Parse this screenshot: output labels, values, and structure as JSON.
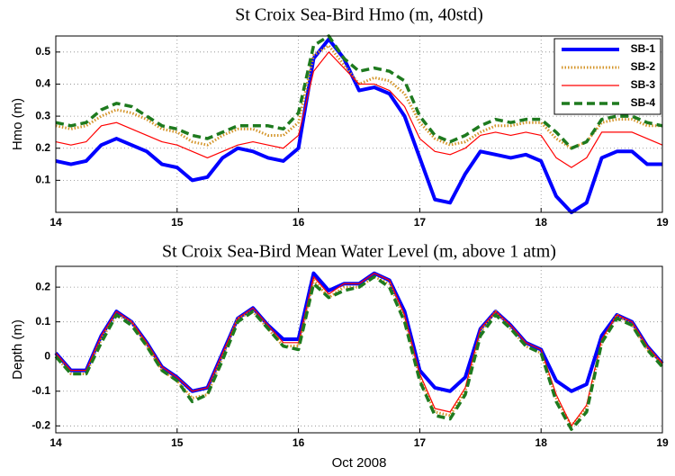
{
  "chart_data": [
    {
      "type": "line",
      "title": "St Croix Sea-Bird Hmo (m, 40std)",
      "ylabel": "Hmo (m)",
      "x": [
        14,
        14.125,
        14.25,
        14.375,
        14.5,
        14.625,
        14.75,
        14.875,
        15,
        15.125,
        15.25,
        15.375,
        15.5,
        15.625,
        15.75,
        15.875,
        16,
        16.125,
        16.25,
        16.375,
        16.5,
        16.625,
        16.75,
        16.875,
        17,
        17.125,
        17.25,
        17.375,
        17.5,
        17.625,
        17.75,
        17.875,
        18,
        18.125,
        18.25,
        18.375,
        18.5,
        18.625,
        18.75,
        18.875,
        19
      ],
      "xlim": [
        14,
        19
      ],
      "xticks": [
        14,
        15,
        16,
        17,
        18,
        19
      ],
      "ylim": [
        0,
        0.55
      ],
      "yticks": [
        0.1,
        0.2,
        0.3,
        0.4,
        0.5
      ],
      "grid": true,
      "legend": "upper right",
      "series": [
        {
          "name": "SB-1",
          "color": "#0000ff",
          "linestyle": "solid",
          "linewidth": 4,
          "values": [
            0.16,
            0.15,
            0.16,
            0.21,
            0.23,
            0.21,
            0.19,
            0.15,
            0.14,
            0.1,
            0.11,
            0.17,
            0.2,
            0.19,
            0.17,
            0.16,
            0.2,
            0.48,
            0.54,
            0.48,
            0.38,
            0.39,
            0.37,
            0.3,
            0.17,
            0.04,
            0.03,
            0.12,
            0.19,
            0.18,
            0.17,
            0.18,
            0.16,
            0.05,
            0.0,
            0.03,
            0.17,
            0.19,
            0.19,
            0.15,
            0.15
          ]
        },
        {
          "name": "SB-2",
          "color": "#d4952a",
          "linestyle": "dotted",
          "linewidth": 3,
          "values": [
            0.27,
            0.26,
            0.27,
            0.3,
            0.32,
            0.31,
            0.29,
            0.26,
            0.25,
            0.22,
            0.21,
            0.24,
            0.26,
            0.26,
            0.24,
            0.24,
            0.28,
            0.49,
            0.52,
            0.46,
            0.4,
            0.42,
            0.41,
            0.37,
            0.28,
            0.23,
            0.21,
            0.22,
            0.25,
            0.27,
            0.27,
            0.28,
            0.28,
            0.23,
            0.2,
            0.22,
            0.28,
            0.29,
            0.29,
            0.27,
            0.27
          ]
        },
        {
          "name": "SB-3",
          "color": "#ff0000",
          "linestyle": "solid",
          "linewidth": 1.2,
          "values": [
            0.22,
            0.21,
            0.22,
            0.27,
            0.28,
            0.26,
            0.24,
            0.22,
            0.21,
            0.19,
            0.17,
            0.19,
            0.21,
            0.22,
            0.21,
            0.2,
            0.24,
            0.44,
            0.5,
            0.45,
            0.4,
            0.4,
            0.38,
            0.33,
            0.23,
            0.19,
            0.18,
            0.2,
            0.24,
            0.25,
            0.24,
            0.25,
            0.24,
            0.17,
            0.14,
            0.17,
            0.25,
            0.25,
            0.25,
            0.23,
            0.21
          ]
        },
        {
          "name": "SB-4",
          "color": "#1e7a1e",
          "linestyle": "dashed",
          "linewidth": 3.5,
          "values": [
            0.28,
            0.27,
            0.28,
            0.32,
            0.34,
            0.33,
            0.3,
            0.27,
            0.26,
            0.24,
            0.23,
            0.25,
            0.27,
            0.27,
            0.27,
            0.26,
            0.31,
            0.52,
            0.55,
            0.48,
            0.44,
            0.45,
            0.44,
            0.41,
            0.3,
            0.24,
            0.22,
            0.24,
            0.27,
            0.29,
            0.28,
            0.29,
            0.29,
            0.25,
            0.2,
            0.22,
            0.29,
            0.3,
            0.3,
            0.28,
            0.27
          ]
        }
      ]
    },
    {
      "type": "line",
      "title": "St Croix Sea-Bird Mean Water Level (m, above 1 atm)",
      "ylabel": "Depth (m)",
      "xlabel": "Oct 2008",
      "x": [
        14,
        14.125,
        14.25,
        14.375,
        14.5,
        14.625,
        14.75,
        14.875,
        15,
        15.125,
        15.25,
        15.375,
        15.5,
        15.625,
        15.75,
        15.875,
        16,
        16.125,
        16.25,
        16.375,
        16.5,
        16.625,
        16.75,
        16.875,
        17,
        17.125,
        17.25,
        17.375,
        17.5,
        17.625,
        17.75,
        17.875,
        18,
        18.125,
        18.25,
        18.375,
        18.5,
        18.625,
        18.75,
        18.875,
        19
      ],
      "xlim": [
        14,
        19
      ],
      "xticks": [
        14,
        15,
        16,
        17,
        18,
        19
      ],
      "ylim": [
        -0.22,
        0.26
      ],
      "yticks": [
        -0.2,
        -0.1,
        0,
        0.1,
        0.2
      ],
      "grid": true,
      "series": [
        {
          "color": "#0000ff",
          "linestyle": "solid",
          "linewidth": 4,
          "values": [
            0.01,
            -0.04,
            -0.04,
            0.06,
            0.13,
            0.1,
            0.04,
            -0.03,
            -0.06,
            -0.1,
            -0.09,
            0.01,
            0.11,
            0.14,
            0.09,
            0.05,
            0.05,
            0.24,
            0.19,
            0.21,
            0.21,
            0.24,
            0.22,
            0.13,
            -0.04,
            -0.09,
            -0.1,
            -0.06,
            0.08,
            0.13,
            0.09,
            0.04,
            0.02,
            -0.07,
            -0.1,
            -0.08,
            0.06,
            0.12,
            0.1,
            0.03,
            -0.02
          ]
        },
        {
          "color": "#d4952a",
          "linestyle": "dotted",
          "linewidth": 3,
          "values": [
            0.0,
            -0.05,
            -0.05,
            0.05,
            0.12,
            0.1,
            0.03,
            -0.04,
            -0.07,
            -0.12,
            -0.11,
            0.0,
            0.11,
            0.13,
            0.08,
            0.03,
            0.03,
            0.22,
            0.17,
            0.2,
            0.2,
            0.23,
            0.21,
            0.11,
            -0.06,
            -0.16,
            -0.17,
            -0.1,
            0.07,
            0.13,
            0.08,
            0.03,
            0.01,
            -0.12,
            -0.2,
            -0.15,
            0.04,
            0.12,
            0.09,
            0.02,
            -0.02
          ]
        },
        {
          "color": "#ff0000",
          "linestyle": "solid",
          "linewidth": 1.2,
          "values": [
            0.01,
            -0.04,
            -0.04,
            0.06,
            0.13,
            0.1,
            0.04,
            -0.03,
            -0.06,
            -0.1,
            -0.09,
            0.01,
            0.11,
            0.14,
            0.09,
            0.04,
            0.04,
            0.23,
            0.18,
            0.21,
            0.21,
            0.24,
            0.22,
            0.12,
            -0.05,
            -0.15,
            -0.16,
            -0.09,
            0.08,
            0.13,
            0.09,
            0.04,
            0.02,
            -0.11,
            -0.2,
            -0.14,
            0.05,
            0.12,
            0.1,
            0.03,
            -0.02
          ]
        },
        {
          "color": "#1e7a1e",
          "linestyle": "dashed",
          "linewidth": 3.5,
          "values": [
            0.0,
            -0.05,
            -0.05,
            0.04,
            0.12,
            0.09,
            0.03,
            -0.04,
            -0.07,
            -0.13,
            -0.11,
            -0.01,
            0.1,
            0.13,
            0.08,
            0.03,
            0.02,
            0.21,
            0.17,
            0.19,
            0.2,
            0.23,
            0.2,
            0.1,
            -0.07,
            -0.17,
            -0.18,
            -0.11,
            0.06,
            0.12,
            0.08,
            0.03,
            0.01,
            -0.13,
            -0.21,
            -0.16,
            0.04,
            0.11,
            0.09,
            0.02,
            -0.03
          ]
        }
      ]
    }
  ]
}
